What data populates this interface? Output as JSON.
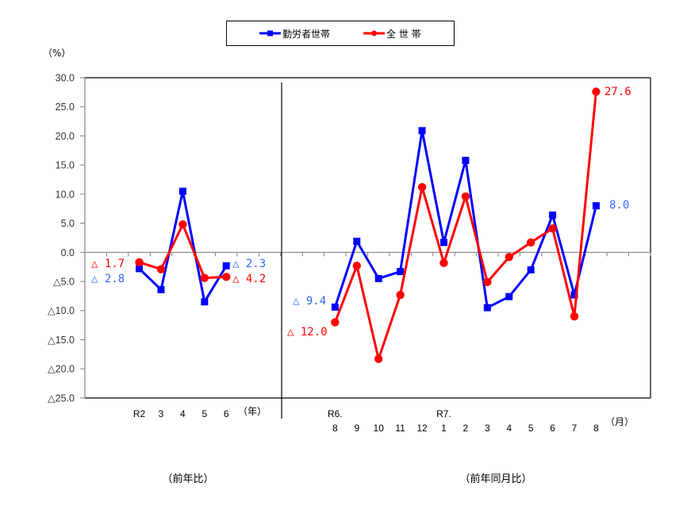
{
  "chart_data": {
    "type": "line",
    "title": "",
    "xlabel": "",
    "ylabel": "（%）",
    "ylim": [
      -25,
      30
    ],
    "ytick_step": 5,
    "yticks": [
      30,
      25,
      20,
      15,
      10,
      5,
      0,
      -5,
      -10,
      -15,
      -20,
      -25
    ],
    "ytick_labels": [
      "30.0",
      "25.0",
      "20.0",
      "15.0",
      "10.0",
      "5.0",
      "0.0",
      "△5.0",
      "△10.0",
      "△15.0",
      "△20.0",
      "△25.0"
    ],
    "grid": false,
    "legend_position": "top",
    "legend": [
      {
        "name": "勤労者世帯",
        "color": "#0000FF",
        "marker": "square",
        "label_color": "#3366FF"
      },
      {
        "name": "全 世 帯",
        "color": "#FF0000",
        "marker": "circle",
        "label_color": "#FF0000"
      }
    ],
    "panels": [
      {
        "caption": "（前年比）",
        "unit_label": "（年）",
        "categories": [
          {
            "top": "R2",
            "bottom": ""
          },
          {
            "top": "3",
            "bottom": ""
          },
          {
            "top": "4",
            "bottom": ""
          },
          {
            "top": "5",
            "bottom": ""
          },
          {
            "top": "6",
            "bottom": ""
          }
        ],
        "series": [
          {
            "name": "勤労者世帯",
            "values": [
              -2.8,
              -6.4,
              10.5,
              -8.5,
              -2.3
            ]
          },
          {
            "name": "全 世 帯",
            "values": [
              -1.7,
              -2.9,
              4.8,
              -4.4,
              -4.2
            ]
          }
        ],
        "annotations": [
          {
            "series": 1,
            "category": 0,
            "text": "△ 1.7"
          },
          {
            "series": 0,
            "category": 0,
            "text": "△ 2.8"
          },
          {
            "series": 0,
            "category": 4,
            "text": "△ 2.3"
          },
          {
            "series": 1,
            "category": 4,
            "text": "△ 4.2"
          }
        ]
      },
      {
        "caption": "（前年同月比）",
        "unit_label": "（月）",
        "categories": [
          {
            "top": "R6.",
            "bottom": "8"
          },
          {
            "top": "",
            "bottom": "9"
          },
          {
            "top": "",
            "bottom": "10"
          },
          {
            "top": "",
            "bottom": "11"
          },
          {
            "top": "",
            "bottom": "12"
          },
          {
            "top": "R7.",
            "bottom": "1"
          },
          {
            "top": "",
            "bottom": "2"
          },
          {
            "top": "",
            "bottom": "3"
          },
          {
            "top": "",
            "bottom": "4"
          },
          {
            "top": "",
            "bottom": "5"
          },
          {
            "top": "",
            "bottom": "6"
          },
          {
            "top": "",
            "bottom": "7"
          },
          {
            "top": "",
            "bottom": "8"
          }
        ],
        "series": [
          {
            "name": "勤労者世帯",
            "values": [
              -9.4,
              1.9,
              -4.5,
              -3.3,
              20.9,
              1.7,
              15.8,
              -9.5,
              -7.6,
              -3.0,
              6.4,
              -7.3,
              8.0
            ]
          },
          {
            "name": "全 世 帯",
            "values": [
              -12.0,
              -2.3,
              -18.3,
              -7.3,
              11.2,
              -1.8,
              9.6,
              -5.1,
              -0.8,
              1.7,
              4.1,
              -11.0,
              27.6
            ]
          }
        ],
        "annotations": [
          {
            "series": 0,
            "category": 0,
            "text": "△ 9.4"
          },
          {
            "series": 1,
            "category": 0,
            "text": "△ 12.0"
          },
          {
            "series": 1,
            "category": 12,
            "text": "27.6"
          },
          {
            "series": 0,
            "category": 12,
            "text": "8.0"
          }
        ]
      }
    ]
  }
}
